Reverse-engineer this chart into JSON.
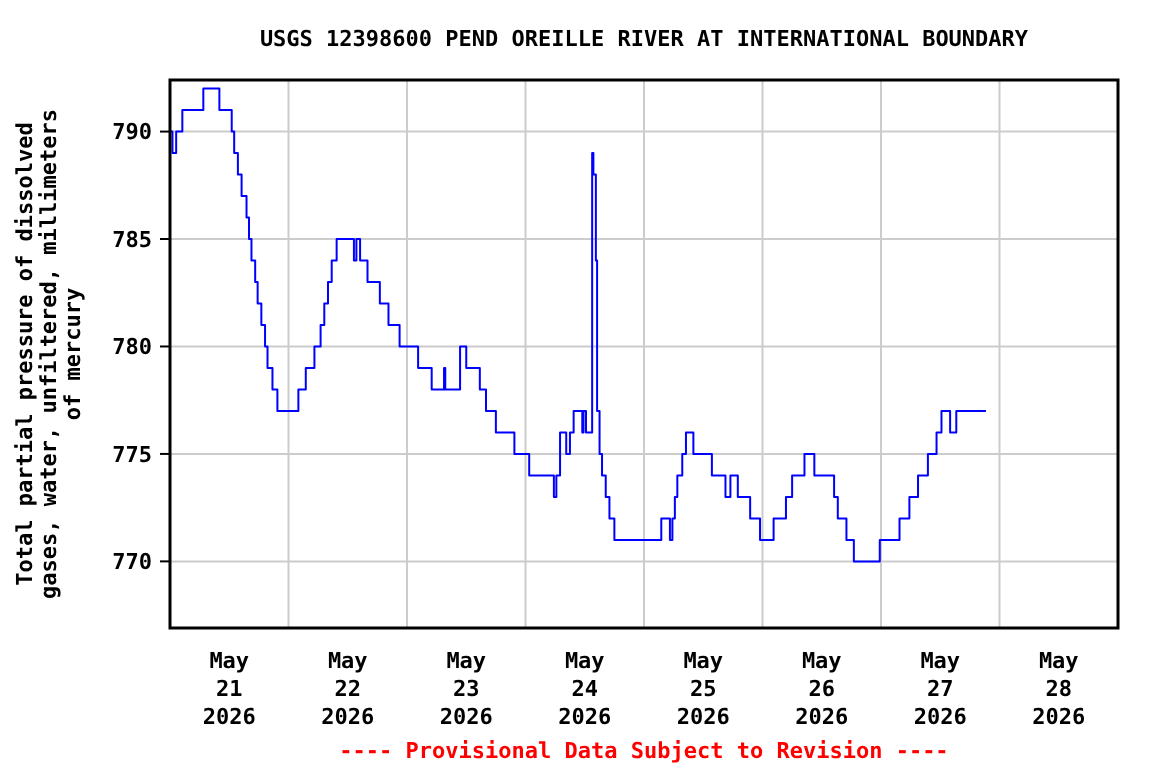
{
  "chart_data": {
    "type": "step",
    "title": "USGS 12398600 PEND OREILLE RIVER AT INTERNATIONAL BOUNDARY",
    "ylabel": "Total partial pressure of dissolved\ngases, water, unfiltered, millimeters\nof mercury",
    "annotations": [
      "---- Provisional Data Subject to Revision ----"
    ],
    "xlim": [
      "2026-05-21T00:00",
      "2026-05-29T00:00"
    ],
    "xticks": [
      {
        "value": "2026-05-21T12:00",
        "label": "May\n21\n2026"
      },
      {
        "value": "2026-05-22T00:00",
        "label": null
      },
      {
        "value": "2026-05-22T12:00",
        "label": "May\n22\n2026"
      },
      {
        "value": "2026-05-23T00:00",
        "label": null
      },
      {
        "value": "2026-05-23T12:00",
        "label": "May\n23\n2026"
      },
      {
        "value": "2026-05-24T00:00",
        "label": null
      },
      {
        "value": "2026-05-24T12:00",
        "label": "May\n24\n2026"
      },
      {
        "value": "2026-05-25T00:00",
        "label": null
      },
      {
        "value": "2026-05-25T12:00",
        "label": "May\n25\n2026"
      },
      {
        "value": "2026-05-26T00:00",
        "label": null
      },
      {
        "value": "2026-05-26T12:00",
        "label": "May\n26\n2026"
      },
      {
        "value": "2026-05-27T00:00",
        "label": null
      },
      {
        "value": "2026-05-27T12:00",
        "label": "May\n27\n2026"
      },
      {
        "value": "2026-05-28T00:00",
        "label": null
      },
      {
        "value": "2026-05-28T12:00",
        "label": "May\n28\n2026"
      }
    ],
    "ylim": [
      766.9,
      792.4
    ],
    "yticks": [
      770,
      775,
      780,
      785,
      790
    ],
    "grid": true,
    "series": [
      {
        "color": "#0000ff",
        "x": [
          "2026-05-21T00:00",
          "2026-05-21T00:30",
          "2026-05-21T01:15",
          "2026-05-21T02:30",
          "2026-05-21T06:45",
          "2026-05-21T10:00",
          "2026-05-21T12:30",
          "2026-05-21T13:00",
          "2026-05-21T13:45",
          "2026-05-21T14:30",
          "2026-05-21T15:30",
          "2026-05-21T16:00",
          "2026-05-21T16:30",
          "2026-05-21T17:15",
          "2026-05-21T17:45",
          "2026-05-21T18:30",
          "2026-05-21T19:15",
          "2026-05-21T19:45",
          "2026-05-21T20:45",
          "2026-05-21T21:45",
          "2026-05-22T02:00",
          "2026-05-22T03:30",
          "2026-05-22T05:15",
          "2026-05-22T06:30",
          "2026-05-22T07:15",
          "2026-05-22T08:00",
          "2026-05-22T08:45",
          "2026-05-22T09:45",
          "2026-05-22T13:15",
          "2026-05-22T13:45",
          "2026-05-22T14:30",
          "2026-05-22T16:00",
          "2026-05-22T18:30",
          "2026-05-22T20:15",
          "2026-05-22T22:30",
          "2026-05-23T02:15",
          "2026-05-23T05:00",
          "2026-05-23T07:30",
          "2026-05-23T07:45",
          "2026-05-23T10:45",
          "2026-05-23T12:00",
          "2026-05-23T14:45",
          "2026-05-23T16:00",
          "2026-05-23T18:00",
          "2026-05-23T21:45",
          "2026-05-24T00:45",
          "2026-05-24T05:45",
          "2026-05-24T06:15",
          "2026-05-24T07:00",
          "2026-05-24T08:15",
          "2026-05-24T09:00",
          "2026-05-24T09:45",
          "2026-05-24T11:30",
          "2026-05-24T11:45",
          "2026-05-24T12:15",
          "2026-05-24T13:30",
          "2026-05-24T13:45",
          "2026-05-24T14:15",
          "2026-05-24T14:30",
          "2026-05-24T15:00",
          "2026-05-24T15:30",
          "2026-05-24T16:15",
          "2026-05-24T17:00",
          "2026-05-24T18:00",
          "2026-05-25T03:30",
          "2026-05-25T05:15",
          "2026-05-25T05:45",
          "2026-05-25T06:15",
          "2026-05-25T06:45",
          "2026-05-25T07:45",
          "2026-05-25T08:30",
          "2026-05-25T10:00",
          "2026-05-25T13:45",
          "2026-05-25T16:30",
          "2026-05-25T17:30",
          "2026-05-25T19:00",
          "2026-05-25T21:30",
          "2026-05-25T23:30",
          "2026-05-26T02:15",
          "2026-05-26T04:45",
          "2026-05-26T06:00",
          "2026-05-26T08:30",
          "2026-05-26T10:30",
          "2026-05-26T14:30",
          "2026-05-26T15:15",
          "2026-05-26T17:00",
          "2026-05-26T18:30",
          "2026-05-26T23:45",
          "2026-05-27T03:45",
          "2026-05-27T05:45",
          "2026-05-27T07:30",
          "2026-05-27T09:30",
          "2026-05-27T11:15",
          "2026-05-27T12:15",
          "2026-05-27T14:00",
          "2026-05-27T15:15",
          "2026-05-27T21:15"
        ],
        "values": [
          790,
          789,
          790,
          791,
          792,
          791,
          790,
          789,
          788,
          787,
          786,
          785,
          784,
          783,
          782,
          781,
          780,
          779,
          778,
          777,
          778,
          779,
          780,
          781,
          782,
          783,
          784,
          785,
          784,
          785,
          784,
          783,
          782,
          781,
          780,
          779,
          778,
          779,
          778,
          780,
          779,
          778,
          777,
          776,
          775,
          774,
          773,
          774,
          776,
          775,
          776,
          777,
          776,
          777,
          776,
          789,
          788,
          784,
          777,
          775,
          774,
          773,
          772,
          771,
          772,
          771,
          772,
          773,
          774,
          775,
          776,
          775,
          774,
          773,
          774,
          773,
          772,
          771,
          772,
          773,
          774,
          775,
          774,
          773,
          772,
          771,
          770,
          771,
          772,
          773,
          774,
          775,
          776,
          777,
          776,
          777,
          777
        ]
      }
    ]
  }
}
